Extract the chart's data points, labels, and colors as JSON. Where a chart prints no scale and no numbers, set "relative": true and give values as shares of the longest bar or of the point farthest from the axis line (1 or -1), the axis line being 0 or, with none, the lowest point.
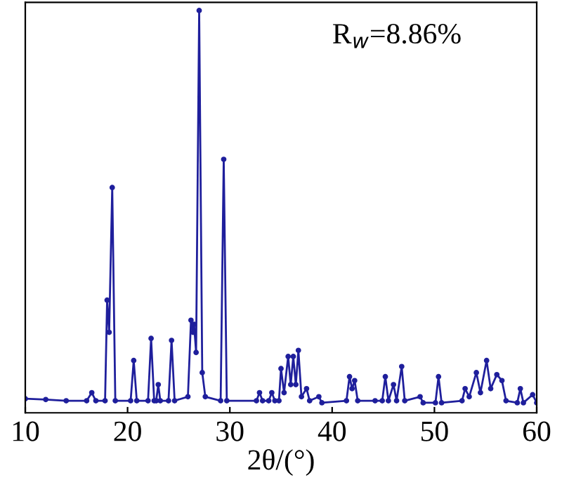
{
  "chart_data": {
    "type": "line",
    "relative": true,
    "xlabel": "2θ/(°)",
    "annotations": [
      "R$_{w}$=8.86%"
    ],
    "xlim": [
      10,
      60
    ],
    "xticks": [
      10,
      20,
      30,
      40,
      50,
      60
    ],
    "grid": false,
    "legend": false,
    "marker": "circle",
    "line_style": "solid",
    "series": [
      {
        "color": "#1f1f9c",
        "x": [
          10,
          12,
          14,
          16,
          16.5,
          16.9,
          17.8,
          18.0,
          18.2,
          18.5,
          18.8,
          20.3,
          20.6,
          20.9,
          22.0,
          22.3,
          22.6,
          22.8,
          23.0,
          23.2,
          24.0,
          24.3,
          24.6,
          25.9,
          26.2,
          26.4,
          26.5,
          26.7,
          27.0,
          27.3,
          27.6,
          29.1,
          29.4,
          29.7,
          32.6,
          32.9,
          33.2,
          33.8,
          34.1,
          34.4,
          34.8,
          35.0,
          35.3,
          35.7,
          35.95,
          36.2,
          36.45,
          36.7,
          37.0,
          37.5,
          37.8,
          38.7,
          39.0,
          41.4,
          41.7,
          41.95,
          42.2,
          42.5,
          44.2,
          44.9,
          45.2,
          45.5,
          46.0,
          46.3,
          46.8,
          47.1,
          48.6,
          48.9,
          50.1,
          50.4,
          50.7,
          52.7,
          53.0,
          53.4,
          54.1,
          54.5,
          55.1,
          55.5,
          56.1,
          56.6,
          57.0,
          58.1,
          58.4,
          58.7,
          59.6,
          60
        ],
        "values": [
          0.035,
          0.033,
          0.03,
          0.03,
          0.05,
          0.03,
          0.03,
          0.28,
          0.2,
          0.56,
          0.03,
          0.03,
          0.13,
          0.03,
          0.03,
          0.185,
          0.03,
          0.03,
          0.07,
          0.03,
          0.03,
          0.18,
          0.03,
          0.04,
          0.23,
          0.2,
          0.22,
          0.15,
          1.0,
          0.1,
          0.04,
          0.03,
          0.63,
          0.03,
          0.03,
          0.05,
          0.03,
          0.03,
          0.05,
          0.03,
          0.03,
          0.11,
          0.05,
          0.14,
          0.07,
          0.14,
          0.07,
          0.155,
          0.04,
          0.06,
          0.03,
          0.04,
          0.025,
          0.03,
          0.09,
          0.06,
          0.08,
          0.03,
          0.03,
          0.03,
          0.09,
          0.03,
          0.07,
          0.03,
          0.115,
          0.03,
          0.04,
          0.025,
          0.025,
          0.09,
          0.025,
          0.03,
          0.06,
          0.04,
          0.1,
          0.05,
          0.13,
          0.06,
          0.095,
          0.08,
          0.03,
          0.025,
          0.06,
          0.025,
          0.045,
          0.025
        ]
      }
    ]
  }
}
